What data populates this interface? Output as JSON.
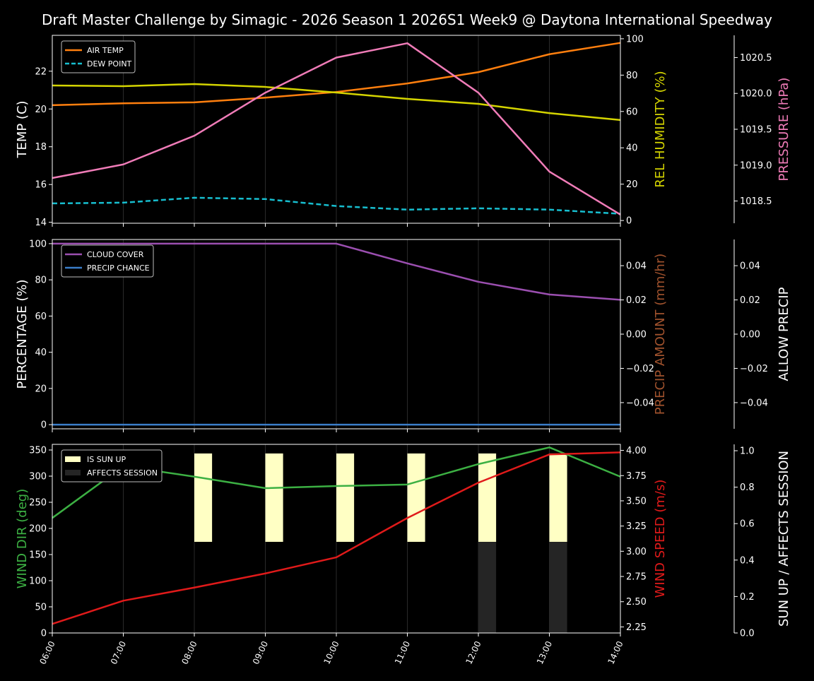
{
  "title": "Draft Master Challenge by Simagic - 2026 Season 1 2026S1 Week9 @ Daytona International Speedway",
  "chart_data": [
    {
      "type": "line",
      "x": [
        "06:00",
        "07:00",
        "08:00",
        "09:00",
        "10:00",
        "11:00",
        "12:00",
        "13:00",
        "14:00"
      ],
      "grid": "vertical only",
      "legend": "top-left",
      "axes": [
        {
          "id": "temp",
          "label": "TEMP (C)",
          "side": "left",
          "ylim": [
            13.95,
            23.9
          ],
          "ticks": [
            14,
            16,
            18,
            20,
            22
          ],
          "tick_labels": [
            "14",
            "16",
            "18",
            "20",
            "22"
          ],
          "label_color": "#ffffff"
        },
        {
          "id": "hum",
          "label": "REL HUMIDITY (%)",
          "side": "right",
          "ylim": [
            -1.5,
            101.9
          ],
          "ticks": [
            0,
            20,
            40,
            60,
            80,
            100
          ],
          "tick_labels": [
            "0",
            "20",
            "40",
            "60",
            "80",
            "100"
          ],
          "label_color": "#d4d400"
        },
        {
          "id": "pres",
          "label": "PRESSURE (hPa)",
          "side": "right-outer",
          "ylim": [
            1018.19,
            1020.81
          ],
          "ticks": [
            1018.5,
            1019.0,
            1019.5,
            1020.0,
            1020.5
          ],
          "tick_labels": [
            "1018.5",
            "1019.0",
            "1019.5",
            "1020.0",
            "1020.5"
          ],
          "label_color": "#f07cb8"
        }
      ],
      "series": [
        {
          "name": "AIR TEMP",
          "axis": "temp",
          "color": "#ff7f0e",
          "style": "solid",
          "legend": true,
          "values": [
            20.2,
            20.3,
            20.35,
            20.6,
            20.9,
            21.35,
            21.95,
            22.9,
            23.5
          ]
        },
        {
          "name": "DEW POINT",
          "axis": "temp",
          "color": "#17becf",
          "style": "dashed",
          "legend": true,
          "values": [
            15.0,
            15.04,
            15.3,
            15.23,
            14.86,
            14.67,
            14.74,
            14.67,
            14.45
          ]
        },
        {
          "axis": "hum",
          "color": "#d4d400",
          "style": "solid",
          "legend": false,
          "values": [
            74.3,
            73.9,
            75.1,
            73.5,
            70.4,
            66.9,
            64.2,
            59.1,
            55.3
          ]
        },
        {
          "axis": "pres",
          "color": "#f07cb8",
          "style": "solid",
          "legend": false,
          "values": [
            1018.82,
            1019.01,
            1019.41,
            1020.01,
            1020.5,
            1020.7,
            1020.01,
            1018.91,
            1018.31
          ]
        }
      ]
    },
    {
      "type": "line",
      "x": [
        "06:00",
        "07:00",
        "08:00",
        "09:00",
        "10:00",
        "11:00",
        "12:00",
        "13:00",
        "14:00"
      ],
      "grid": "vertical only",
      "legend": "top-left",
      "axes": [
        {
          "id": "pct",
          "label": "PERCENTAGE (%)",
          "side": "left",
          "ylim": [
            -2.3,
            102.3
          ],
          "ticks": [
            0,
            20,
            40,
            60,
            80,
            100
          ],
          "tick_labels": [
            "0",
            "20",
            "40",
            "60",
            "80",
            "100"
          ],
          "label_color": "#ffffff"
        },
        {
          "id": "amt",
          "label": "PRECIP AMOUNT (mm/hr)",
          "side": "right",
          "ylim": [
            -0.0553,
            0.0553
          ],
          "ticks": [
            -0.04,
            -0.02,
            0,
            0.02,
            0.04
          ],
          "tick_labels": [
            "−0.04",
            "−0.02",
            "0.00",
            "0.02",
            "0.04"
          ],
          "label_color": "#a0522d"
        },
        {
          "id": "allow",
          "label": "ALLOW PRECIP",
          "side": "right-outer",
          "ylim": [
            -0.0553,
            0.0553
          ],
          "ticks": [
            -0.04,
            -0.02,
            0,
            0.02,
            0.04
          ],
          "tick_labels": [
            "−0.04",
            "−0.02",
            "0.00",
            "0.02",
            "0.04"
          ],
          "label_color": "#ffffff"
        }
      ],
      "series": [
        {
          "name": "CLOUD COVER",
          "axis": "pct",
          "color": "#9b4fb0",
          "style": "solid",
          "legend": true,
          "values": [
            100,
            100,
            100,
            100,
            100,
            89.1,
            78.9,
            71.9,
            69
          ]
        },
        {
          "name": "PRECIP CHANCE",
          "axis": "pct",
          "color": "#3a7dc9",
          "style": "solid",
          "legend": true,
          "values": [
            0,
            0,
            0,
            0,
            0,
            0,
            0,
            0,
            0
          ]
        }
      ]
    },
    {
      "type": "line",
      "x": [
        "06:00",
        "07:00",
        "08:00",
        "09:00",
        "10:00",
        "11:00",
        "12:00",
        "13:00",
        "14:00"
      ],
      "grid": "vertical only",
      "legend": "top-left",
      "axes": [
        {
          "id": "dir",
          "label": "WIND DIR (deg)",
          "side": "left",
          "ylim": [
            0,
            360.8
          ],
          "ticks": [
            0,
            50,
            100,
            150,
            200,
            250,
            300,
            350
          ],
          "tick_labels": [
            "0",
            "50",
            "100",
            "150",
            "200",
            "250",
            "300",
            "350"
          ],
          "label_color": "#3cb043"
        },
        {
          "id": "spd",
          "label": "WIND SPEED (m/s)",
          "side": "right",
          "ylim": [
            2.19,
            4.06
          ],
          "ticks": [
            2.25,
            2.5,
            2.75,
            3.0,
            3.25,
            3.5,
            3.75,
            4.0
          ],
          "tick_labels": [
            "2.25",
            "2.50",
            "2.75",
            "3.00",
            "3.25",
            "3.50",
            "3.75",
            "4.00"
          ],
          "label_color": "#e01a1a"
        },
        {
          "id": "sun",
          "label": "SUN UP / AFFECTS SESSION",
          "side": "right-outer",
          "ylim": [
            0,
            1.035
          ],
          "ticks": [
            0,
            0.2,
            0.4,
            0.6,
            0.8,
            1.0
          ],
          "tick_labels": [
            "0.0",
            "0.2",
            "0.4",
            "0.6",
            "0.8",
            "1.0"
          ],
          "label_color": "#ffffff"
        }
      ],
      "bars": [
        {
          "name": "IS SUN UP",
          "color": "#ffffc4",
          "values": [
            0,
            0,
            1,
            1,
            1,
            1,
            1,
            1,
            0
          ]
        },
        {
          "name": "AFFECTS SESSION",
          "color": "#252525",
          "values": [
            0,
            0,
            0,
            0,
            0,
            0,
            1,
            1,
            0
          ]
        }
      ],
      "series": [
        {
          "axis": "dir",
          "color": "#3cb043",
          "style": "solid",
          "legend": false,
          "values": [
            220,
            319,
            299,
            277,
            281,
            284,
            323,
            355,
            299
          ]
        },
        {
          "axis": "spd",
          "color": "#e01a1a",
          "style": "solid",
          "legend": false,
          "values": [
            2.28,
            2.51,
            2.64,
            2.78,
            2.94,
            3.33,
            3.68,
            3.96,
            3.98
          ]
        }
      ]
    }
  ]
}
